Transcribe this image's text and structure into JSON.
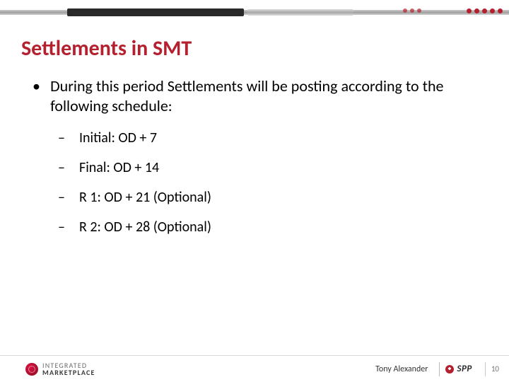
{
  "colors": {
    "title": "#b5202f",
    "body_text": "#222222",
    "footer_text": "#333333",
    "divider": "#d9d9d9",
    "accent": "#b5202f"
  },
  "typography": {
    "title_fontsize_pt": 30,
    "title_weight": "bold",
    "lvl1_fontsize_pt": 22,
    "lvl2_fontsize_pt": 20,
    "footer_fontsize_pt": 12,
    "pagenum_fontsize_pt": 11
  },
  "title": "Settlements in SMT",
  "bullets": {
    "lvl1": "During this period Settlements will be posting according to the following schedule:",
    "lvl2": [
      "Initial: OD + 7",
      "Final: OD + 14",
      "R 1: OD + 21 (Optional)",
      "R 2: OD + 28 (Optional)"
    ]
  },
  "footer": {
    "left_logo_line1": "INTEGRATED",
    "left_logo_line2": "MARKETPLACE",
    "presenter": "Tony Alexander",
    "right_logo": "SPP",
    "page_number": "10"
  }
}
